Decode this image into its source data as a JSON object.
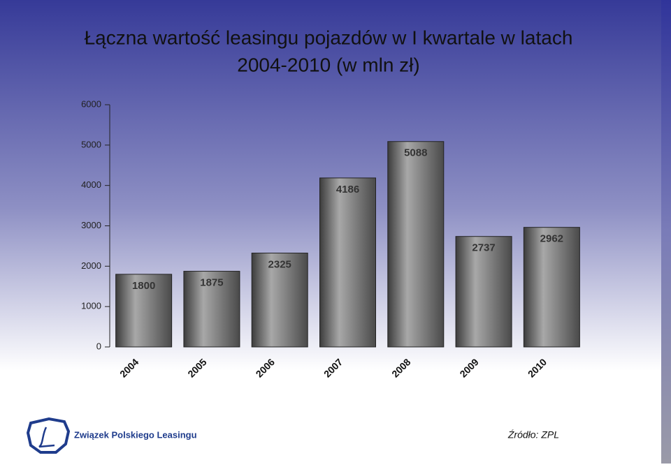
{
  "chart_data": {
    "type": "bar",
    "title": "Łączna wartość leasingu pojazdów w I kwartale w latach",
    "subtitle": "2004-2010 (w mln zł)",
    "categories": [
      "2004",
      "2005",
      "2006",
      "2007",
      "2008",
      "2009",
      "2010"
    ],
    "values": [
      1800,
      1875,
      2325,
      4186,
      5088,
      2737,
      2962
    ],
    "color": "#a8a8a8",
    "ylim": [
      0,
      6000
    ],
    "yticks": [
      0,
      1000,
      2000,
      3000,
      4000,
      5000,
      6000
    ],
    "grid": false,
    "logo_text": "Związek Polskiego Leasingu",
    "source": "Źródło: ZPL"
  }
}
